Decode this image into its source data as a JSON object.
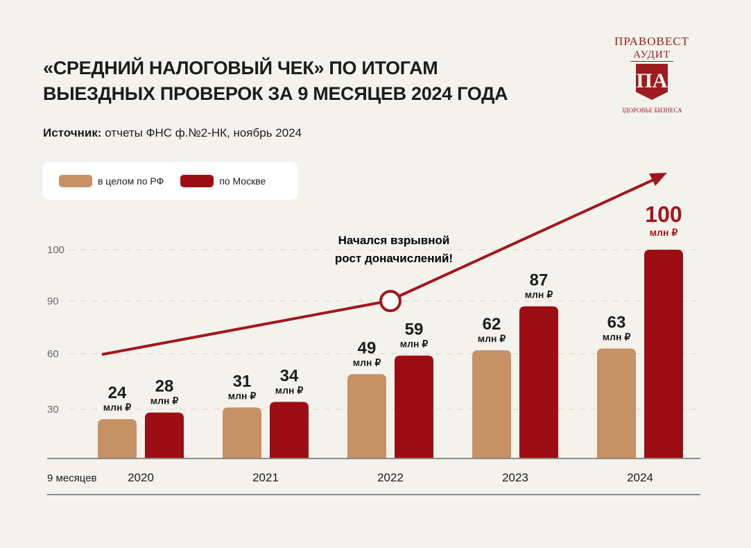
{
  "title_line1": "«СРЕДНИЙ НАЛОГОВЫЙ ЧЕК» ПО ИТОГАМ",
  "title_line2": "ВЫЕЗДНЫХ ПРОВЕРОК ЗА 9 МЕСЯЦЕВ 2024 ГОДА",
  "source_label": "Источник:",
  "source_text": " отчеты ФНС ф.№2-НК, ноябрь 2024",
  "logo": {
    "name_top": "ПРАВОВЕСТ",
    "name_bottom": "АУДИТ",
    "monogram": "ПА",
    "tagline": "ЗДОРОВЬЕ БИЗНЕСА"
  },
  "colors": {
    "rf": "#c59165",
    "moscow": "#9c0e13",
    "arrow": "#a3161b"
  },
  "annotation": {
    "line1": "Начался взрывной",
    "line2": "рост доначислений!"
  },
  "chart_data": {
    "type": "bar",
    "title": "«Средний налоговый чек» по итогам выездных проверок за 9 месяцев 2024 года",
    "xlabel": "9 месяцев",
    "ylabel": "",
    "unit": "млн ₽",
    "categories": [
      "2020",
      "2021",
      "2022",
      "2023",
      "2024"
    ],
    "series": [
      {
        "name": "в целом по РФ",
        "values": [
          24,
          31,
          49,
          62,
          63
        ]
      },
      {
        "name": "по Москве",
        "values": [
          28,
          34,
          59,
          87,
          100
        ]
      }
    ],
    "yticks": [
      30,
      60,
      90,
      100
    ],
    "ylim": [
      0,
      100
    ],
    "grid": true,
    "legend": "top-left"
  }
}
